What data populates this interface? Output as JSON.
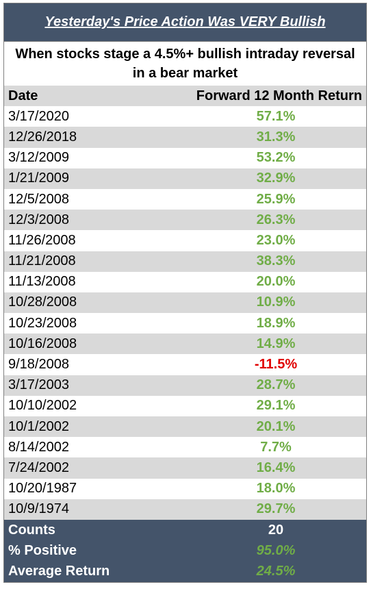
{
  "title": "Yesterday's Price Action Was VERY Bullish",
  "subtitle": "When stocks stage a 4.5%+ bullish intraday reversal in a bear market",
  "columns": {
    "date": "Date",
    "return": "Forward 12 Month Return"
  },
  "rows": [
    {
      "date": "3/17/2020",
      "ret": "57.1%"
    },
    {
      "date": "12/26/2018",
      "ret": "31.3%"
    },
    {
      "date": "3/12/2009",
      "ret": "53.2%"
    },
    {
      "date": "1/21/2009",
      "ret": "32.9%"
    },
    {
      "date": "12/5/2008",
      "ret": "25.9%"
    },
    {
      "date": "12/3/2008",
      "ret": "26.3%"
    },
    {
      "date": "11/26/2008",
      "ret": "23.0%"
    },
    {
      "date": "11/21/2008",
      "ret": "38.3%"
    },
    {
      "date": "11/13/2008",
      "ret": "20.0%"
    },
    {
      "date": "10/28/2008",
      "ret": "10.9%"
    },
    {
      "date": "10/23/2008",
      "ret": "18.9%"
    },
    {
      "date": "10/16/2008",
      "ret": "14.9%"
    },
    {
      "date": "9/18/2008",
      "ret": "-11.5%"
    },
    {
      "date": "3/17/2003",
      "ret": "28.7%"
    },
    {
      "date": "10/10/2002",
      "ret": "29.1%"
    },
    {
      "date": "10/1/2002",
      "ret": "20.1%"
    },
    {
      "date": "8/14/2002",
      "ret": "7.7%"
    },
    {
      "date": "7/24/2002",
      "ret": "16.4%"
    },
    {
      "date": "10/20/1987",
      "ret": "18.0%"
    },
    {
      "date": "10/9/1974",
      "ret": "29.7%"
    }
  ],
  "summary": {
    "counts_label": "Counts",
    "counts_value": "20",
    "positive_label": "% Positive",
    "positive_value": "95.0%",
    "average_label": "Average Return",
    "average_value": "24.5%"
  },
  "colors": {
    "header_bg": "#44546a",
    "stripe": "#d9d9d9",
    "positive": "#70ad47",
    "negative": "#e00000"
  }
}
